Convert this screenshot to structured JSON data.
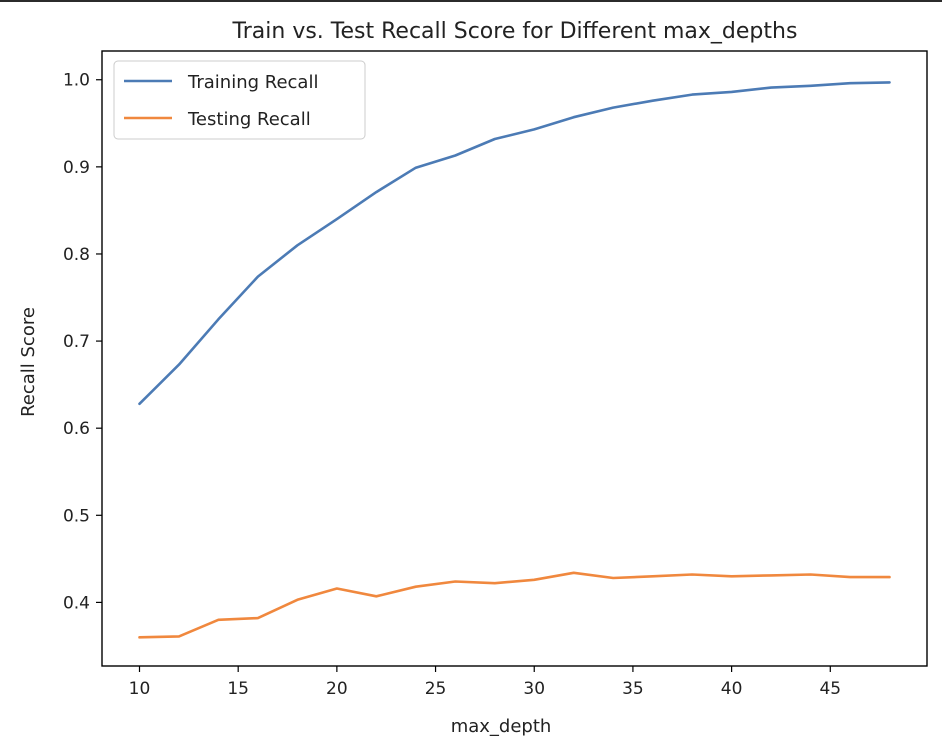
{
  "chart_data": {
    "type": "line",
    "title": "Train vs. Test Recall Score for Different max_depths",
    "xlabel": "max_depth",
    "ylabel": "Recall Score",
    "xlim": [
      8.1,
      49.9
    ],
    "ylim": [
      0.327,
      1.033
    ],
    "x_ticks": [
      10,
      15,
      20,
      25,
      30,
      35,
      40,
      45
    ],
    "y_ticks": [
      0.4,
      0.5,
      0.6,
      0.7,
      0.8,
      0.9,
      1.0
    ],
    "grid": false,
    "legend_position": "upper left",
    "x": [
      10,
      12,
      14,
      16,
      18,
      20,
      22,
      24,
      26,
      28,
      30,
      32,
      34,
      36,
      38,
      40,
      42,
      44,
      46,
      48
    ],
    "series": [
      {
        "name": "Training Recall",
        "color": "#4c7bb5",
        "values": [
          0.628,
          0.673,
          0.725,
          0.774,
          0.81,
          0.84,
          0.871,
          0.899,
          0.913,
          0.932,
          0.943,
          0.957,
          0.968,
          0.976,
          0.983,
          0.986,
          0.991,
          0.993,
          0.996,
          0.997
        ]
      },
      {
        "name": "Testing Recall",
        "color": "#f0883e",
        "values": [
          0.36,
          0.361,
          0.38,
          0.382,
          0.403,
          0.416,
          0.407,
          0.418,
          0.424,
          0.422,
          0.426,
          0.434,
          0.428,
          0.43,
          0.432,
          0.43,
          0.431,
          0.432,
          0.429,
          0.429
        ]
      }
    ]
  }
}
